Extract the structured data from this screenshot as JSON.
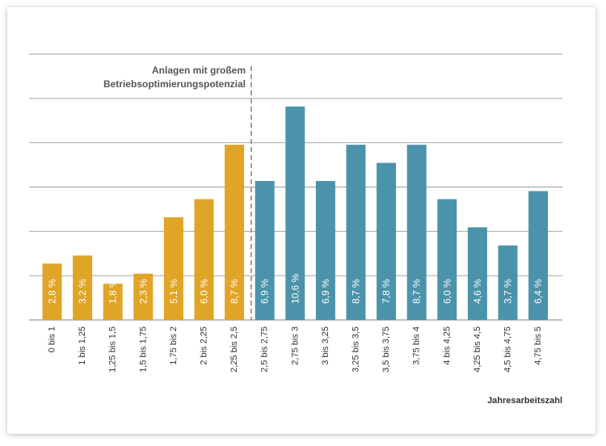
{
  "colors": {
    "left_series": "#e0a427",
    "right_series": "#4b93ab",
    "gridline": "#9a9a9a",
    "axis_text": "#333333",
    "annotation_text": "#555555",
    "label_text": "#ffffff"
  },
  "chart_data": {
    "type": "bar",
    "title": "",
    "xlabel": "Jahresarbeitszahl",
    "ylabel": "",
    "ylim": [
      0,
      13.2
    ],
    "grid": true,
    "legend": "none",
    "categories": [
      "0 bis 1",
      "1 bis 1,25",
      "1,25 bis 1,5",
      "1,5 bis 1,75",
      "1,75 bis 2",
      "2 bis 2,25",
      "2,25 bis 2,5",
      "2,5 bis 2,75",
      "2,75 bis 3",
      "3 bis 3,25",
      "3,25 bis 3,5",
      "3,5 bis 3,75",
      "3,75 bis 4",
      "4 bis 4,25",
      "4,25 bis 4,5",
      "4,5 bis 4,75",
      "4,75 bis 5"
    ],
    "values": [
      2.8,
      3.2,
      1.8,
      2.3,
      5.1,
      6.0,
      8.7,
      6.9,
      10.6,
      6.9,
      8.7,
      7.8,
      8.7,
      6.0,
      4.6,
      3.7,
      6.4
    ],
    "data_labels": [
      "2,8 %",
      "3,2 %",
      "1,8 %",
      "2,3 %",
      "5,1 %",
      "6,0 %",
      "8,7 %",
      "6,9 %",
      "10,6 %",
      "6,9 %",
      "8,7 %",
      "7,8 %",
      "8,7 %",
      "6,0 %",
      "4,6 %",
      "3,7 %",
      "6,4 %"
    ],
    "highlight_count": 7,
    "annotation": {
      "lines": [
        "Anlagen mit großem",
        "Betriebsoptimierungspotenzial"
      ]
    }
  }
}
